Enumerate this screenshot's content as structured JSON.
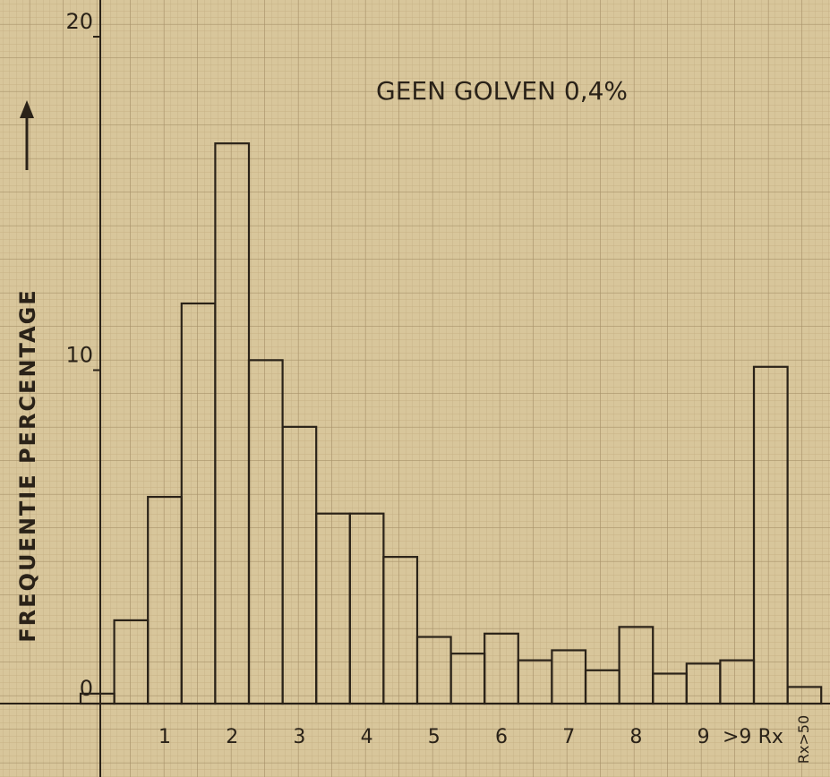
{
  "chart_data": {
    "type": "bar",
    "title": "GEEN GOLVEN 0,4%",
    "y_label": "FREQUENTIE PERCENTAGE",
    "categories": [
      null,
      null,
      "1",
      null,
      "2",
      null,
      "3",
      null,
      "4",
      null,
      "5",
      null,
      "6",
      null,
      "7",
      null,
      "8",
      null,
      "9",
      ">9",
      "Rx",
      "Rx>50"
    ],
    "values": [
      0.3,
      2.5,
      6.2,
      12.0,
      16.8,
      10.3,
      8.3,
      5.7,
      5.7,
      4.4,
      2.0,
      1.5,
      2.1,
      1.3,
      1.6,
      1.0,
      2.3,
      0.9,
      1.2,
      1.3,
      10.1,
      0.5
    ],
    "ylim": [
      -2.2,
      21.1
    ],
    "yticks": [
      0,
      10,
      20
    ],
    "grid": true
  }
}
